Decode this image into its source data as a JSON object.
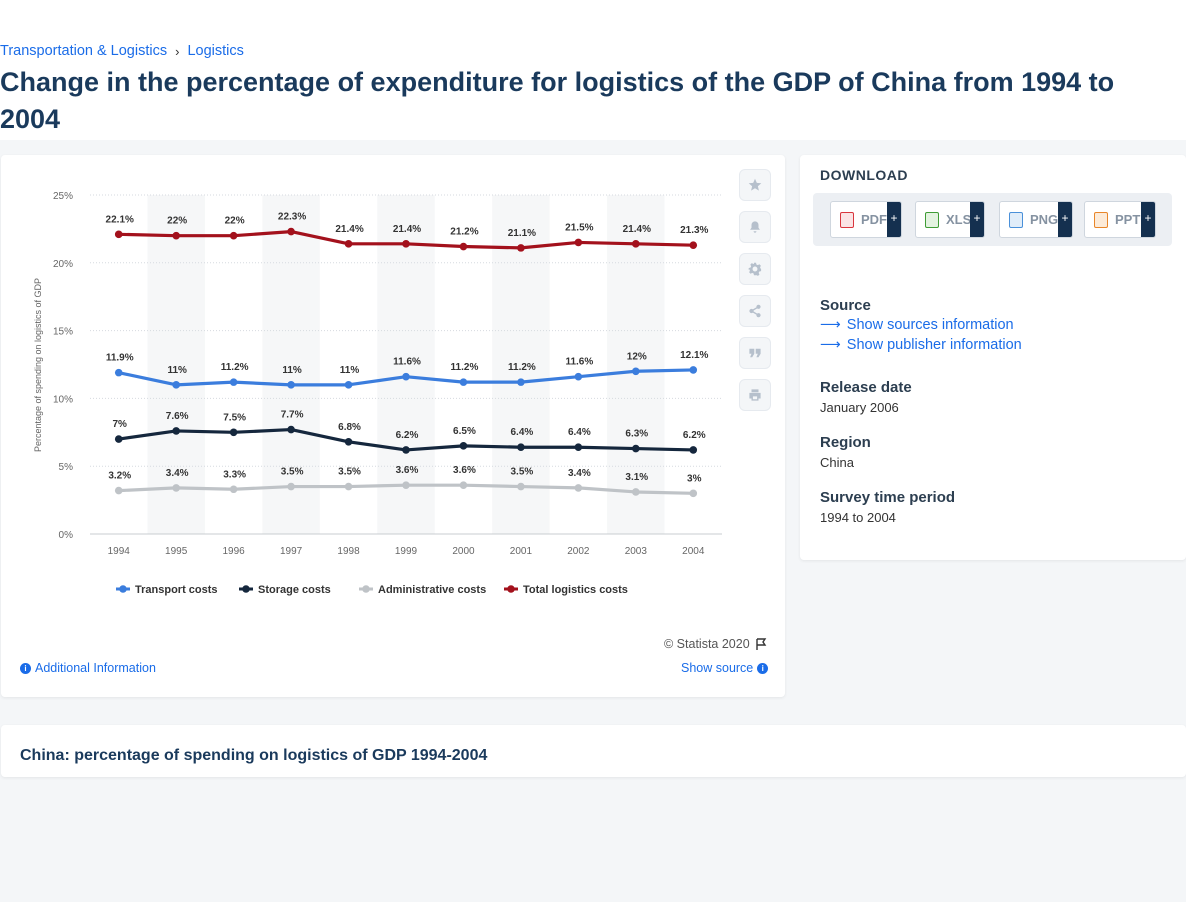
{
  "breadcrumb": {
    "items": [
      "Transportation & Logistics",
      "Logistics"
    ],
    "separator": "›"
  },
  "title": "Change in the percentage of expenditure for logistics of the GDP of China from 1994 to 2004",
  "chart_data": {
    "type": "line",
    "ylabel": "Percentage of spending on logistics of GDP",
    "ylim": [
      0,
      25
    ],
    "yticks": [
      "0%",
      "5%",
      "10%",
      "15%",
      "20%",
      "25%"
    ],
    "yticks_values": [
      0,
      5,
      10,
      15,
      20,
      25
    ],
    "categories": [
      "1994",
      "1995",
      "1996",
      "1997",
      "1998",
      "1999",
      "2000",
      "2001",
      "2002",
      "2003",
      "2004"
    ],
    "legend_position": "bottom",
    "grid": true,
    "series": [
      {
        "name": "Transport costs",
        "color": "#3b7ddd",
        "values": [
          11.9,
          11,
          11.2,
          11,
          11,
          11.6,
          11.2,
          11.2,
          11.6,
          12,
          12.1
        ],
        "labels": [
          "11.9%",
          "11%",
          "11.2%",
          "11%",
          "11%",
          "11.6%",
          "11.2%",
          "11.2%",
          "11.6%",
          "12%",
          "12.1%"
        ]
      },
      {
        "name": "Storage costs",
        "color": "#15273d",
        "values": [
          7,
          7.6,
          7.5,
          7.7,
          6.8,
          6.2,
          6.5,
          6.4,
          6.4,
          6.3,
          6.2
        ],
        "labels": [
          "7%",
          "7.6%",
          "7.5%",
          "7.7%",
          "6.8%",
          "6.2%",
          "6.5%",
          "6.4%",
          "6.4%",
          "6.3%",
          "6.2%"
        ]
      },
      {
        "name": "Administrative costs",
        "color": "#bfc3c7",
        "values": [
          3.2,
          3.4,
          3.3,
          3.5,
          3.5,
          3.6,
          3.6,
          3.5,
          3.4,
          3.1,
          3
        ],
        "labels": [
          "3.2%",
          "3.4%",
          "3.3%",
          "3.5%",
          "3.5%",
          "3.6%",
          "3.6%",
          "3.5%",
          "3.4%",
          "3.1%",
          "3%"
        ]
      },
      {
        "name": "Total logistics costs",
        "color": "#a3111c",
        "values": [
          22.1,
          22,
          22,
          22.3,
          21.4,
          21.4,
          21.2,
          21.1,
          21.5,
          21.4,
          21.3
        ],
        "labels": [
          "22.1%",
          "22%",
          "22%",
          "22.3%",
          "21.4%",
          "21.4%",
          "21.2%",
          "21.1%",
          "21.5%",
          "21.4%",
          "21.3%"
        ]
      }
    ]
  },
  "chart_footer": {
    "credit": "© Statista 2020",
    "additional_info": "Additional Information",
    "show_source": "Show source"
  },
  "toolbar": {
    "icons": [
      "star-icon",
      "bell-icon",
      "gear-icon",
      "share-icon",
      "quote-icon",
      "print-icon"
    ]
  },
  "download": {
    "title": "DOWNLOAD",
    "buttons": [
      {
        "label": "PDF",
        "color": "#d9363e"
      },
      {
        "label": "XLS",
        "color": "#3f9c35"
      },
      {
        "label": "PNG",
        "color": "#4a90d9"
      },
      {
        "label": "PPT",
        "color": "#e8862a"
      }
    ],
    "plus": "+"
  },
  "meta": {
    "source_heading": "Source",
    "sources_link": "Show sources information",
    "publisher_link": "Show publisher information",
    "release_heading": "Release date",
    "release_value": "January 2006",
    "region_heading": "Region",
    "region_value": "China",
    "period_heading": "Survey time period",
    "period_value": "1994 to 2004"
  },
  "bottom_title": "China: percentage of spending on logistics of GDP 1994-2004"
}
